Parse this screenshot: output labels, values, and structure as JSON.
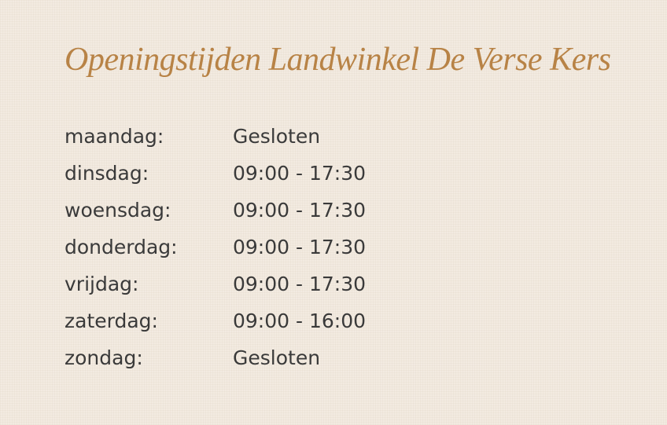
{
  "title": "Openingstijden Landwinkel De Verse Kers",
  "hours": [
    [
      "maandag:",
      "Gesloten"
    ],
    [
      "dinsdag:",
      "09:00 - 17:30"
    ],
    [
      "woensdag:",
      "09:00 - 17:30"
    ],
    [
      "donderdag:",
      "09:00 - 17:30"
    ],
    [
      "vrijdag:",
      "09:00 - 17:30"
    ],
    [
      "zaterdag:",
      "09:00 - 16:00"
    ],
    [
      "zondag:",
      "Gesloten"
    ]
  ]
}
